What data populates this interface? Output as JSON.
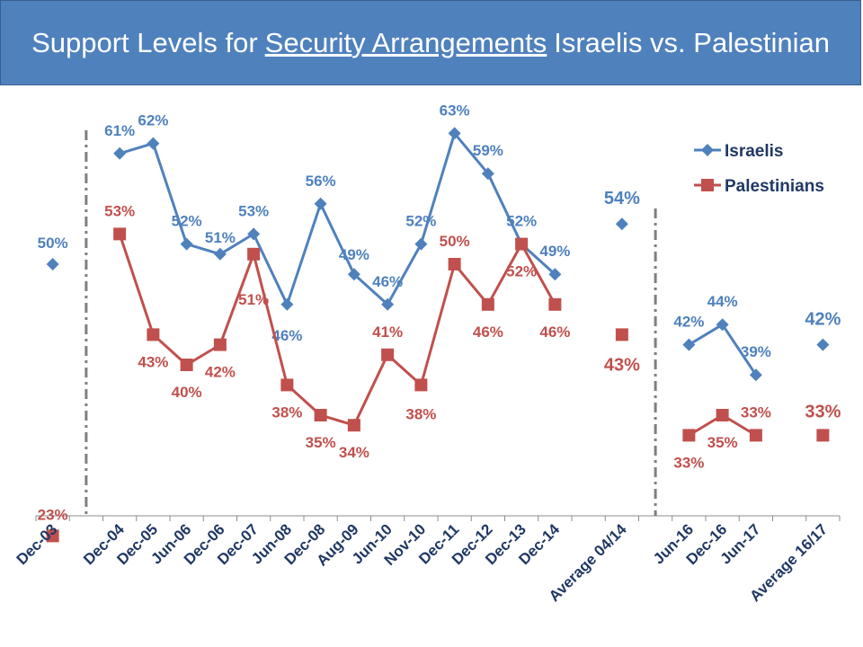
{
  "header": {
    "title_before": "Support Levels for",
    "title_underlined": "Security Arrangements",
    "title_after": "Israelis vs. Palestinian"
  },
  "chart_data": {
    "type": "line",
    "title": "Support Levels for Security Arrangements Israelis vs. Palestinian",
    "categories": [
      "Dec-03",
      "",
      "Dec-04",
      "Dec-05",
      "Jun-06",
      "Dec-06",
      "Dec-07",
      "Jun-08",
      "Dec-08",
      "Aug-09",
      "Jun-10",
      "Nov-10",
      "Dec-11",
      "Dec-12",
      "Dec-13",
      "Dec-14",
      "",
      "Average 04/14",
      "",
      "Jun-16",
      "Dec-16",
      "Jun-17",
      "",
      "Average 16/17"
    ],
    "series": [
      {
        "name": "Israelis",
        "color": "#4f81bd",
        "marker": "diamond",
        "values": [
          50,
          null,
          61,
          62,
          52,
          51,
          53,
          46,
          56,
          49,
          46,
          52,
          63,
          59,
          52,
          49,
          null,
          54,
          null,
          42,
          44,
          39,
          null,
          42
        ],
        "labels": [
          "50%",
          null,
          "61%",
          "62%",
          "52%",
          "51%",
          "53%",
          "46%",
          "56%",
          "49%",
          "46%",
          "52%",
          "63%",
          "59%",
          "52%",
          "49%",
          null,
          "54%",
          null,
          "42%",
          "44%",
          "39%",
          null,
          "42%"
        ]
      },
      {
        "name": "Palestinians",
        "color": "#c0504d",
        "marker": "square",
        "values": [
          23,
          null,
          53,
          43,
          40,
          42,
          51,
          38,
          35,
          34,
          41,
          38,
          50,
          46,
          52,
          46,
          null,
          43,
          null,
          33,
          35,
          33,
          null,
          33
        ],
        "labels": [
          "23%",
          null,
          "53%",
          "43%",
          "40%",
          "42%",
          "51%",
          "38%",
          "35%",
          "34%",
          "41%",
          "38%",
          "50%",
          "46%",
          "52%",
          "46%",
          null,
          "43%",
          null,
          "33%",
          "35%",
          "33%",
          null,
          "33%"
        ]
      }
    ],
    "segments": [
      [
        2,
        15
      ],
      [
        19,
        21
      ]
    ],
    "average_indices": [
      17,
      23
    ],
    "separators_after": [
      "Dec-03",
      "Average 04/14"
    ],
    "ylim": [
      16,
      68
    ],
    "xlabel": "",
    "ylabel": "",
    "grid": false,
    "legend": "top-right"
  }
}
